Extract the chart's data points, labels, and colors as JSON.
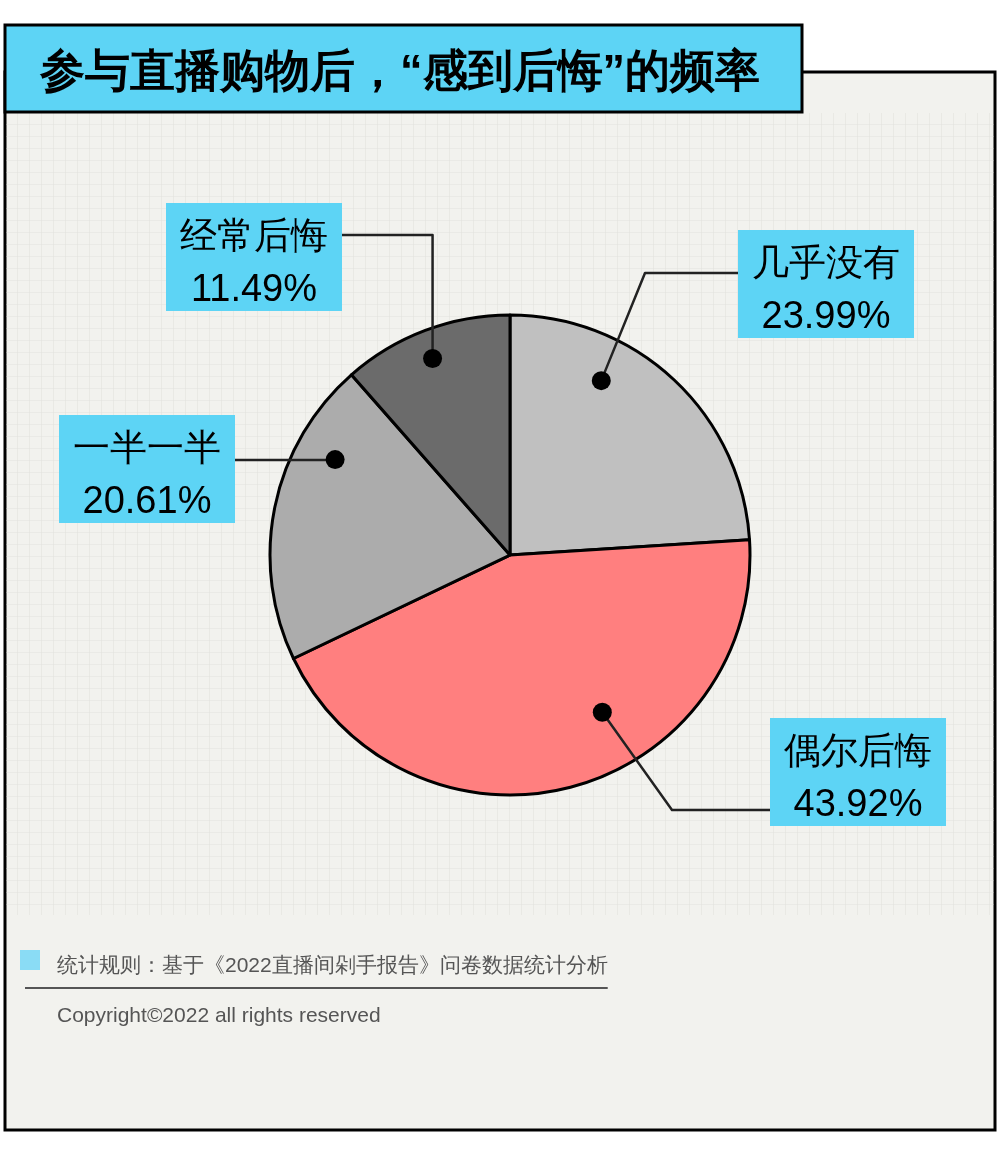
{
  "chart_data": {
    "type": "pie",
    "title": "参与直播购物后，“感到后悔”的频率",
    "categories": [
      "几乎没有",
      "偶尔后悔",
      "一半一半",
      "经常后悔"
    ],
    "values": [
      23.99,
      43.92,
      20.61,
      11.49
    ],
    "value_labels": [
      "23.99%",
      "43.92%",
      "20.61%",
      "11.49%"
    ],
    "colors": [
      "#c0c0c0",
      "#ff7f7f",
      "#acacac",
      "#6b6b6b"
    ],
    "annotations": [
      "统计规则：基于《2022直播间剁手报告》问卷数据统计分析",
      "Copyright©2022 all rights reserved"
    ]
  }
}
